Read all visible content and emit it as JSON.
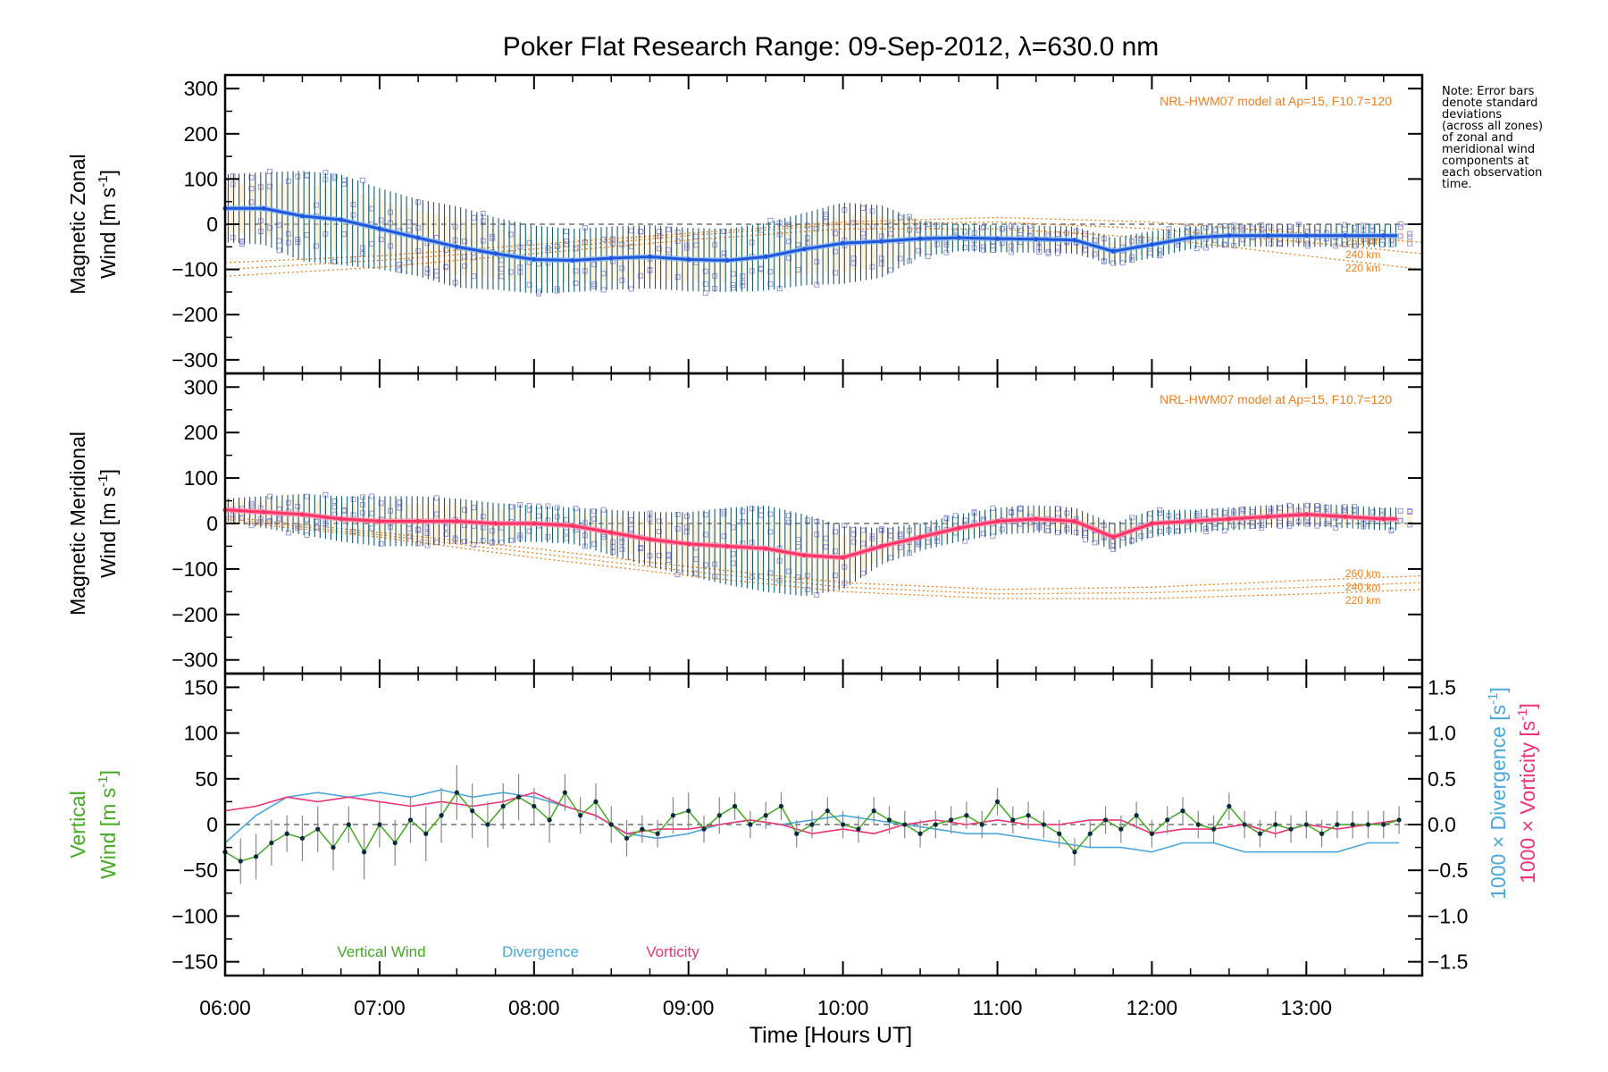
{
  "title": "Poker Flat Research Range: 09-Sep-2012, λ=630.0 nm",
  "note": "Note: Error bars\ndenote standard\ndeviations\n(across all zones)\nof zonal and\nmeridional wind\ncomponents at\neach observation\ntime.",
  "xaxis": {
    "label": "Time [Hours UT]",
    "ticks": [
      "06:00",
      "07:00",
      "08:00",
      "09:00",
      "10:00",
      "11:00",
      "12:00",
      "13:00"
    ],
    "range_hours": [
      6.0,
      13.75
    ]
  },
  "colors": {
    "zonal_mean": "#2255dd",
    "zonal_light": "#7db9f0",
    "meridional_mean": "#ff3366",
    "model": "#f08020",
    "errorbar": "#1a5a6a",
    "zone_points": "#9999e0",
    "vertical": "#44aa22",
    "divergence": "#4aa8dd",
    "vorticity": "#ee3377"
  },
  "chart_data": [
    {
      "type": "line",
      "panel": "zonal",
      "ylabel_1": "Magnetic Zonal",
      "ylabel_2": "Wind [m s",
      "ylabel_sup": "-1",
      "ylabel_end": "]",
      "ylim": [
        -330,
        330
      ],
      "yticks": [
        "300",
        "200",
        "100",
        "0",
        "−100",
        "−200",
        "−300"
      ],
      "model_label": "NRL-HWM07 model at Ap=15, F10.7=120",
      "model_alt_labels": [
        "260 km",
        "240 km",
        "220 km"
      ],
      "mean_x": [
        6.0,
        6.25,
        6.5,
        6.75,
        7.0,
        7.25,
        7.5,
        7.75,
        8.0,
        8.25,
        8.5,
        8.75,
        9.0,
        9.25,
        9.5,
        9.75,
        10.0,
        10.25,
        10.5,
        10.75,
        11.0,
        11.25,
        11.5,
        11.75,
        12.0,
        12.25,
        12.5,
        12.75,
        13.0,
        13.25,
        13.5
      ],
      "mean_y": [
        35,
        35,
        18,
        10,
        -10,
        -30,
        -50,
        -65,
        -78,
        -80,
        -75,
        -72,
        -78,
        -80,
        -72,
        -55,
        -42,
        -38,
        -32,
        -30,
        -32,
        -33,
        -35,
        -60,
        -45,
        -30,
        -25,
        -25,
        -25,
        -25,
        -25
      ],
      "error": [
        75,
        80,
        100,
        100,
        90,
        85,
        90,
        80,
        75,
        70,
        70,
        70,
        70,
        70,
        75,
        80,
        90,
        80,
        40,
        30,
        30,
        30,
        30,
        30,
        30,
        25,
        25,
        25,
        25,
        25,
        25
      ],
      "model_series": [
        {
          "name": "260 km",
          "x": [
            6.0,
            7.0,
            8.0,
            9.0,
            10.0,
            11.0,
            12.0,
            13.0,
            13.75
          ],
          "y": [
            -85,
            -70,
            -45,
            -20,
            5,
            15,
            5,
            -20,
            -40
          ]
        },
        {
          "name": "240 km",
          "x": [
            6.0,
            7.0,
            8.0,
            9.0,
            10.0,
            11.0,
            12.0,
            13.0,
            13.75
          ],
          "y": [
            -100,
            -80,
            -55,
            -25,
            0,
            5,
            -10,
            -40,
            -65
          ]
        },
        {
          "name": "220 km",
          "x": [
            6.0,
            7.0,
            8.0,
            9.0,
            10.0,
            11.0,
            12.0,
            13.0,
            13.75
          ],
          "y": [
            -115,
            -95,
            -65,
            -35,
            -10,
            -10,
            -30,
            -70,
            -100
          ]
        }
      ]
    },
    {
      "type": "line",
      "panel": "meridional",
      "ylabel_1": "Magnetic Meridional",
      "ylabel_2": "Wind [m s",
      "ylabel_sup": "-1",
      "ylabel_end": "]",
      "ylim": [
        -330,
        330
      ],
      "yticks": [
        "300",
        "200",
        "100",
        "0",
        "−100",
        "−200",
        "−300"
      ],
      "model_label": "NRL-HWM07 model at Ap=15, F10.7=120",
      "model_alt_labels": [
        "260 km",
        "240 km",
        "220 km"
      ],
      "mean_x": [
        6.0,
        6.25,
        6.5,
        6.75,
        7.0,
        7.25,
        7.5,
        7.75,
        8.0,
        8.25,
        8.5,
        8.75,
        9.0,
        9.25,
        9.5,
        9.75,
        10.0,
        10.25,
        10.5,
        10.75,
        11.0,
        11.25,
        11.5,
        11.75,
        12.0,
        12.25,
        12.5,
        12.75,
        13.0,
        13.25,
        13.5
      ],
      "mean_y": [
        30,
        25,
        20,
        10,
        5,
        5,
        5,
        0,
        0,
        -5,
        -20,
        -35,
        -45,
        -50,
        -55,
        -70,
        -75,
        -50,
        -30,
        -10,
        5,
        10,
        5,
        -30,
        0,
        5,
        10,
        15,
        20,
        15,
        10
      ],
      "error": [
        25,
        35,
        45,
        50,
        55,
        55,
        50,
        45,
        40,
        40,
        50,
        60,
        70,
        85,
        95,
        90,
        70,
        40,
        30,
        30,
        30,
        30,
        30,
        30,
        30,
        25,
        25,
        25,
        25,
        25,
        25
      ],
      "model_series": [
        {
          "name": "260 km",
          "x": [
            6.0,
            7.0,
            8.0,
            9.0,
            10.0,
            11.0,
            12.0,
            13.0,
            13.75
          ],
          "y": [
            15,
            -20,
            -55,
            -95,
            -130,
            -145,
            -140,
            -125,
            -115
          ]
        },
        {
          "name": "240 km",
          "x": [
            6.0,
            7.0,
            8.0,
            9.0,
            10.0,
            11.0,
            12.0,
            13.0,
            13.75
          ],
          "y": [
            10,
            -25,
            -65,
            -105,
            -140,
            -155,
            -152,
            -140,
            -130
          ]
        },
        {
          "name": "220 km",
          "x": [
            6.0,
            7.0,
            8.0,
            9.0,
            10.0,
            11.0,
            12.0,
            13.0,
            13.75
          ],
          "y": [
            5,
            -30,
            -75,
            -115,
            -150,
            -165,
            -165,
            -155,
            -145
          ]
        }
      ]
    },
    {
      "type": "line",
      "panel": "vertical",
      "ylabel_1": "Vertical",
      "ylabel_2": "Wind [m s",
      "ylabel_sup": "-1",
      "ylabel_end": "]",
      "ylim": [
        -165,
        165
      ],
      "yticks": [
        "150",
        "100",
        "50",
        "0",
        "−50",
        "−100",
        "−150"
      ],
      "y2label_div": "1000 × Divergence [s",
      "y2label_vor": "1000 × Vorticity [s",
      "y2label_sup": "-1",
      "y2label_end": "]",
      "y2lim": [
        -1.65,
        1.65
      ],
      "y2ticks": [
        "1.5",
        "1.0",
        "0.5",
        "0.0",
        "−0.5",
        "−1.0",
        "−1.5"
      ],
      "legend": [
        "Vertical Wind",
        "Divergence",
        "Vorticity"
      ],
      "series": [
        {
          "name": "Vertical Wind",
          "x": [
            6.0,
            6.1,
            6.2,
            6.3,
            6.4,
            6.5,
            6.6,
            6.7,
            6.8,
            6.9,
            7.0,
            7.1,
            7.2,
            7.3,
            7.4,
            7.5,
            7.6,
            7.7,
            7.8,
            7.9,
            8.0,
            8.1,
            8.2,
            8.3,
            8.4,
            8.5,
            8.6,
            8.7,
            8.8,
            8.9,
            9.0,
            9.1,
            9.2,
            9.3,
            9.4,
            9.5,
            9.6,
            9.7,
            9.8,
            9.9,
            10.0,
            10.1,
            10.2,
            10.3,
            10.4,
            10.5,
            10.6,
            10.7,
            10.8,
            10.9,
            11.0,
            11.1,
            11.2,
            11.3,
            11.4,
            11.5,
            11.6,
            11.7,
            11.8,
            11.9,
            12.0,
            12.1,
            12.2,
            12.3,
            12.4,
            12.5,
            12.6,
            12.7,
            12.8,
            12.9,
            13.0,
            13.1,
            13.2,
            13.3,
            13.4,
            13.5,
            13.6
          ],
          "y": [
            -30,
            -40,
            -35,
            -20,
            -10,
            -15,
            -5,
            -25,
            0,
            -30,
            0,
            -20,
            5,
            -10,
            10,
            35,
            15,
            0,
            20,
            30,
            20,
            5,
            35,
            10,
            25,
            0,
            -15,
            -5,
            -10,
            10,
            15,
            -5,
            10,
            20,
            0,
            10,
            20,
            -10,
            0,
            15,
            0,
            -5,
            15,
            5,
            0,
            -10,
            0,
            5,
            10,
            0,
            25,
            5,
            10,
            0,
            -10,
            -30,
            -10,
            5,
            -5,
            10,
            -10,
            5,
            15,
            0,
            -5,
            20,
            0,
            -10,
            0,
            -5,
            0,
            -10,
            0,
            0,
            0,
            0,
            5
          ],
          "error": [
            20,
            25,
            25,
            25,
            20,
            25,
            25,
            25,
            20,
            30,
            25,
            25,
            25,
            30,
            30,
            30,
            30,
            25,
            25,
            25,
            20,
            25,
            20,
            20,
            20,
            20,
            20,
            15,
            15,
            20,
            20,
            15,
            20,
            15,
            15,
            15,
            15,
            15,
            15,
            15,
            15,
            15,
            15,
            15,
            15,
            15,
            15,
            15,
            15,
            15,
            15,
            15,
            15,
            15,
            15,
            15,
            15,
            15,
            15,
            15,
            15,
            15,
            15,
            15,
            15,
            15,
            15,
            15,
            15,
            15,
            15,
            15,
            15,
            15,
            15,
            15,
            15
          ]
        },
        {
          "name": "Divergence",
          "x": [
            6.0,
            6.2,
            6.4,
            6.6,
            6.8,
            7.0,
            7.2,
            7.4,
            7.6,
            7.8,
            8.0,
            8.2,
            8.4,
            8.6,
            8.8,
            9.0,
            9.2,
            9.4,
            9.6,
            9.8,
            10.0,
            10.2,
            10.4,
            10.6,
            10.8,
            11.0,
            11.2,
            11.4,
            11.6,
            11.8,
            12.0,
            12.2,
            12.4,
            12.6,
            12.8,
            13.0,
            13.2,
            13.4,
            13.6
          ],
          "y": [
            -0.2,
            0.1,
            0.3,
            0.35,
            0.3,
            0.35,
            0.3,
            0.38,
            0.3,
            0.35,
            0.3,
            0.2,
            0.1,
            -0.1,
            -0.15,
            -0.1,
            0.0,
            0.05,
            0.0,
            0.05,
            0.1,
            0.05,
            0.0,
            -0.05,
            -0.1,
            -0.1,
            -0.15,
            -0.2,
            -0.25,
            -0.25,
            -0.3,
            -0.2,
            -0.2,
            -0.3,
            -0.3,
            -0.3,
            -0.3,
            -0.2,
            -0.2
          ]
        },
        {
          "name": "Vorticity",
          "x": [
            6.0,
            6.2,
            6.4,
            6.6,
            6.8,
            7.0,
            7.2,
            7.4,
            7.6,
            7.8,
            8.0,
            8.2,
            8.4,
            8.6,
            8.8,
            9.0,
            9.2,
            9.4,
            9.6,
            9.8,
            10.0,
            10.2,
            10.4,
            10.6,
            10.8,
            11.0,
            11.2,
            11.4,
            11.6,
            11.8,
            12.0,
            12.2,
            12.4,
            12.6,
            12.8,
            13.0,
            13.2,
            13.4,
            13.6
          ],
          "y": [
            0.15,
            0.2,
            0.3,
            0.25,
            0.3,
            0.25,
            0.2,
            0.25,
            0.2,
            0.25,
            0.35,
            0.2,
            0.1,
            -0.1,
            -0.05,
            -0.05,
            0.0,
            0.05,
            0.0,
            -0.1,
            -0.05,
            -0.1,
            0.0,
            0.05,
            0.0,
            0.05,
            0.0,
            0.0,
            0.05,
            0.05,
            -0.1,
            -0.05,
            -0.05,
            0.0,
            -0.1,
            0.0,
            -0.05,
            0.0,
            0.05
          ]
        }
      ]
    }
  ]
}
